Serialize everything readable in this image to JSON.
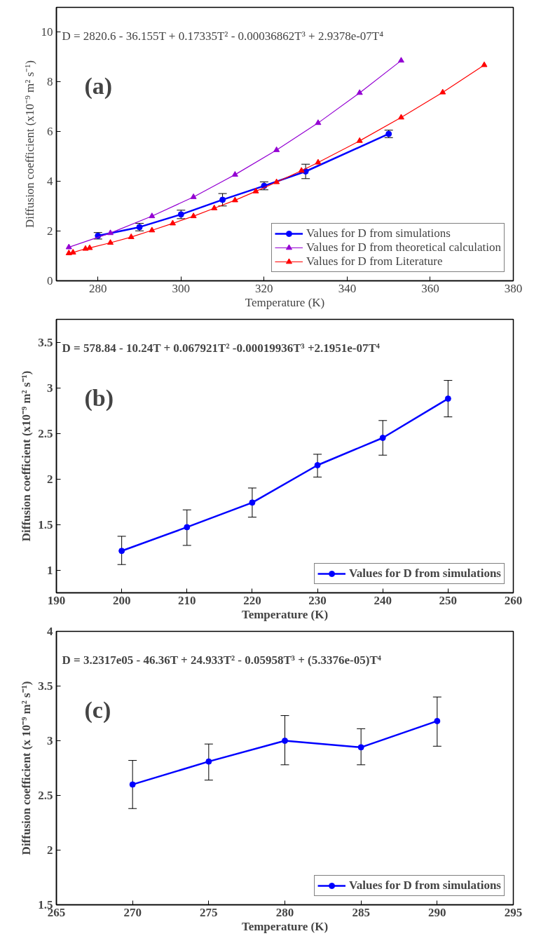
{
  "chart_data": [
    {
      "type": "line",
      "xlabel": "Temperature (K)",
      "ylabel": "Diffusion coefficient (x10⁻⁹ m² s⁻¹)",
      "annotations": [
        "D = 2820.6 - 36.155T + 0.17335T² - 0.00036862T³ + 2.9378e-07T⁴",
        "(a)"
      ],
      "xlim": [
        270,
        380
      ],
      "xticks": [
        280,
        300,
        320,
        340,
        360,
        380
      ],
      "ylim": [
        0,
        11
      ],
      "yticks": [
        0,
        2,
        4,
        6,
        8,
        10
      ],
      "grid": false,
      "legend": "bottom right",
      "series": [
        {
          "name": "Values for D from simulations",
          "color": "#0000ff",
          "marker": "circle",
          "x": [
            280,
            290,
            300,
            310,
            320,
            330,
            350
          ],
          "values": [
            1.81,
            2.16,
            2.67,
            3.26,
            3.82,
            4.4,
            5.91
          ],
          "errors": [
            0.13,
            0.15,
            0.17,
            0.25,
            0.16,
            0.29,
            0.15
          ]
        },
        {
          "name": "Values for D from theoretical calculation",
          "color": "#9400d3",
          "marker": "triangle",
          "x": [
            273,
            283,
            293,
            303,
            313,
            323,
            333,
            343,
            353
          ],
          "values": [
            1.35,
            1.92,
            2.6,
            3.37,
            4.27,
            5.26,
            6.35,
            7.56,
            8.86
          ]
        },
        {
          "name": "Values for D from Literature",
          "color": "#ff0000",
          "marker": "triangle",
          "x": [
            273,
            274,
            277,
            278,
            283,
            288,
            293,
            298,
            303,
            308,
            313,
            318,
            323,
            329,
            333,
            343,
            353,
            363,
            373
          ],
          "values": [
            1.11,
            1.14,
            1.29,
            1.32,
            1.53,
            1.76,
            2.03,
            2.31,
            2.6,
            2.92,
            3.24,
            3.6,
            3.97,
            4.43,
            4.76,
            5.63,
            6.57,
            7.58,
            8.68
          ]
        }
      ]
    },
    {
      "type": "line",
      "xlabel": "Temperature (K)",
      "ylabel": "Diffusion coefficient (x10⁻⁹ m² s⁻¹)",
      "annotations": [
        "D = 578.84 - 10.24T + 0.067921T² -0.00019936T³ +2.1951e-07T⁴",
        "(b)"
      ],
      "xlim": [
        190,
        260
      ],
      "xticks": [
        190,
        200,
        210,
        220,
        230,
        240,
        250,
        260
      ],
      "ylim": [
        0.75,
        3.75
      ],
      "yticks": [
        1,
        1.5,
        2,
        2.5,
        3,
        3.5
      ],
      "grid": false,
      "legend": "bottom right",
      "series": [
        {
          "name": "Values for D from simulations",
          "color": "#0000ff",
          "marker": "circle",
          "x": [
            200,
            210,
            220,
            230,
            240,
            250
          ],
          "values": [
            1.21,
            1.47,
            1.74,
            2.15,
            2.45,
            2.88
          ],
          "errors": [
            [
              1.06,
              1.37
            ],
            [
              1.27,
              1.66
            ],
            [
              1.58,
              1.9
            ],
            [
              2.02,
              2.27
            ],
            [
              2.26,
              2.64
            ],
            [
              2.68,
              3.08
            ]
          ]
        }
      ]
    },
    {
      "type": "line",
      "xlabel": "Temperature (K)",
      "ylabel": "Diffusion coefficient (x 10⁻⁹ m² s⁻¹)",
      "annotations": [
        "D = 3.2317e05 - 46.36T + 24.933T² - 0.05958T³ + (5.3376e-05)T⁴",
        "(c)"
      ],
      "xlim": [
        265,
        295
      ],
      "xticks": [
        265,
        270,
        275,
        280,
        285,
        290,
        295
      ],
      "ylim": [
        1.5,
        4
      ],
      "yticks": [
        1.5,
        2,
        2.5,
        3,
        3.5,
        4
      ],
      "grid": false,
      "legend": "bottom right",
      "series": [
        {
          "name": "Values for D from simulations",
          "color": "#0000ff",
          "marker": "circle",
          "x": [
            270,
            275,
            280,
            285,
            290
          ],
          "values": [
            2.6,
            2.81,
            3.0,
            2.94,
            3.18
          ],
          "errors": [
            [
              2.38,
              2.82
            ],
            [
              2.64,
              2.97
            ],
            [
              2.78,
              3.23
            ],
            [
              2.78,
              3.11
            ],
            [
              2.95,
              3.4
            ]
          ]
        }
      ]
    }
  ]
}
